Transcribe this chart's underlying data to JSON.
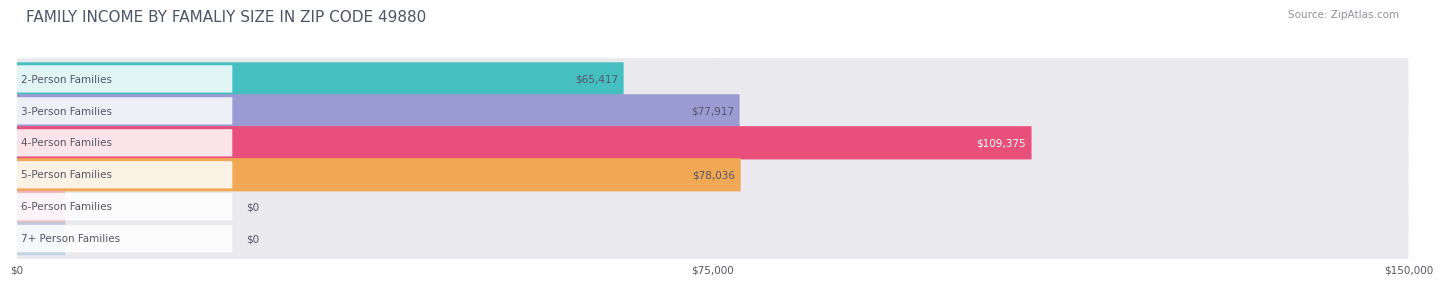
{
  "title": "FAMILY INCOME BY FAMALIY SIZE IN ZIP CODE 49880",
  "source": "Source: ZipAtlas.com",
  "categories": [
    "2-Person Families",
    "3-Person Families",
    "4-Person Families",
    "5-Person Families",
    "6-Person Families",
    "7+ Person Families"
  ],
  "values": [
    65417,
    77917,
    109375,
    78036,
    0,
    0
  ],
  "value_labels": [
    "$65,417",
    "$77,917",
    "$109,375",
    "$78,036",
    "$0",
    "$0"
  ],
  "bar_colors": [
    "#45BFBF",
    "#9B9BD4",
    "#E84F7A",
    "#F0A855",
    "#F2A0AA",
    "#A8C2E0"
  ],
  "track_color": "#EAEAEE",
  "xlim_max": 150000,
  "xticks": [
    0,
    75000,
    150000
  ],
  "xtick_labels": [
    "$0",
    "$75,000",
    "$150,000"
  ],
  "background_color": "#FFFFFF",
  "title_color": "#4A5568",
  "source_color": "#9090A0",
  "label_color": "#555566",
  "value_color_inside": "#FFFFFF",
  "value_color_outside": "#555566",
  "title_fontsize": 11,
  "bar_label_fontsize": 7.5,
  "value_fontsize": 7.5,
  "xtick_fontsize": 7.5,
  "source_fontsize": 7.5,
  "label_pill_color": "#FFFFFF",
  "label_pill_alpha": 0.85
}
